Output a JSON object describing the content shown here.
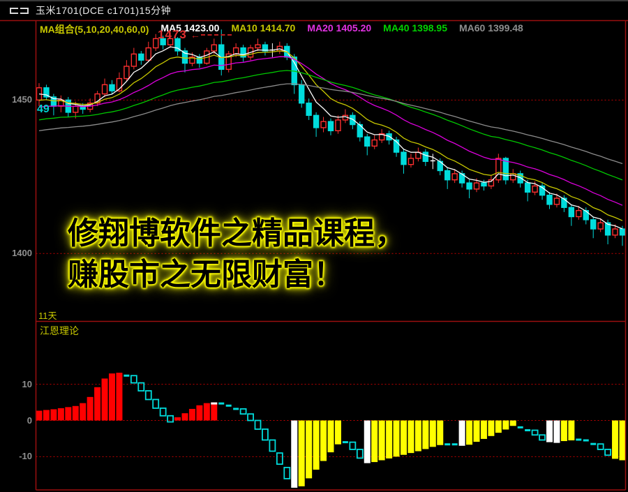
{
  "window": {
    "title": "玉米1701(DCE c1701)15分钟"
  },
  "legend": {
    "items": [
      {
        "label": "MA组合(5,10,20,40,60,0)",
        "color": "#c8c800"
      },
      {
        "label": "MA5 1423.00",
        "color": "#ffffff"
      },
      {
        "label": "MA10 1414.70",
        "color": "#c8c800"
      },
      {
        "label": "MA20 1405.20",
        "color": "#e232e2"
      },
      {
        "label": "MA40 1398.95",
        "color": "#00d200"
      },
      {
        "label": "MA60 1399.48",
        "color": "#8e8e8e"
      }
    ]
  },
  "main_chart": {
    "annotation": {
      "text": "1473",
      "candle_index": 25,
      "price": 1473
    },
    "left_tag": "49",
    "bottom_tag": "11天"
  },
  "sub_chart": {
    "label": "江恩理论"
  },
  "watermark": {
    "line1": "修翔博软件之精品课程，",
    "line2": "赚股市之无限财富！"
  },
  "colors": {
    "frame": "#9b0f0f",
    "grid": "#c40000",
    "up": "#ff3030",
    "down": "#00dcdc",
    "doji": "#ffffff",
    "bar_red": "#ff0000",
    "bar_yellow": "#ffff00",
    "bar_white": "#ffffff",
    "marker_cyan": "#00dcdc",
    "axis_text": "#909090"
  },
  "chart_data": [
    {
      "type": "candlestick",
      "title": "玉米1701(DCE c1701)15分钟",
      "ylim": [
        1378,
        1476
      ],
      "gridlines": [
        {
          "price": 1450,
          "label": "1450"
        },
        {
          "price": 1400,
          "label": "1400"
        }
      ],
      "ma_lines": [
        {
          "name": "MA5",
          "color": "#ffffff",
          "seed": 1451.0,
          "k": 0.333
        },
        {
          "name": "MA10",
          "color": "#c8c800",
          "seed": 1449.0,
          "k": 0.182
        },
        {
          "name": "MA20",
          "color": "#dc00dc",
          "seed": 1447.0,
          "k": 0.095
        },
        {
          "name": "MA40",
          "color": "#00c800",
          "seed": 1443.0,
          "k": 0.049
        },
        {
          "name": "MA60",
          "color": "#8c8c8c",
          "seed": 1439.5,
          "k": 0.033
        }
      ],
      "candles": [
        [
          1450,
          1455.5,
          1448,
          1454
        ],
        [
          1454,
          1455,
          1450,
          1451
        ],
        [
          1451,
          1452,
          1445,
          1448
        ],
        [
          1448,
          1451.5,
          1446,
          1450
        ],
        [
          1450,
          1451,
          1444.5,
          1446
        ],
        [
          1446,
          1449.5,
          1444,
          1448
        ],
        [
          1448,
          1449,
          1445.5,
          1447
        ],
        [
          1447,
          1450.5,
          1446,
          1449
        ],
        [
          1449,
          1453,
          1448,
          1452
        ],
        [
          1452,
          1457,
          1451,
          1455
        ],
        [
          1455,
          1456.5,
          1452,
          1453
        ],
        [
          1453,
          1459,
          1452.5,
          1457
        ],
        [
          1457,
          1463,
          1456,
          1461
        ],
        [
          1461,
          1467,
          1460,
          1465
        ],
        [
          1465,
          1466,
          1461.5,
          1463
        ],
        [
          1463,
          1469,
          1462.5,
          1467
        ],
        [
          1467,
          1471.5,
          1466,
          1470
        ],
        [
          1470,
          1471,
          1466.5,
          1468
        ],
        [
          1468,
          1472,
          1467,
          1470
        ],
        [
          1470,
          1470.5,
          1464.5,
          1466
        ],
        [
          1466,
          1467,
          1459,
          1462
        ],
        [
          1462,
          1465.5,
          1461,
          1464
        ],
        [
          1464,
          1465,
          1460.5,
          1462
        ],
        [
          1462,
          1467,
          1461.5,
          1466
        ],
        [
          1466,
          1470,
          1465,
          1468
        ],
        [
          1468,
          1473,
          1458,
          1460
        ],
        [
          1460,
          1466,
          1459,
          1465
        ],
        [
          1465,
          1468.5,
          1464,
          1467
        ],
        [
          1467,
          1468,
          1462.5,
          1464
        ],
        [
          1464,
          1468,
          1463,
          1467
        ],
        [
          1467,
          1470,
          1466,
          1468
        ],
        [
          1468,
          1469,
          1464.5,
          1466
        ],
        [
          1466,
          1468.5,
          1464,
          1466.3
        ],
        [
          1466,
          1469,
          1465,
          1467.5
        ],
        [
          1467.5,
          1468.5,
          1463,
          1464
        ],
        [
          1464,
          1465,
          1452,
          1455
        ],
        [
          1455,
          1456.5,
          1447.5,
          1449
        ],
        [
          1449,
          1450.5,
          1443.5,
          1445
        ],
        [
          1445,
          1446,
          1438,
          1441
        ],
        [
          1441,
          1444.5,
          1439.5,
          1443
        ],
        [
          1443,
          1444,
          1438.5,
          1440
        ],
        [
          1440,
          1445,
          1439,
          1443.5
        ],
        [
          1443.5,
          1447,
          1442.5,
          1445
        ],
        [
          1445,
          1446,
          1440.5,
          1442
        ],
        [
          1442,
          1443,
          1436.5,
          1438
        ],
        [
          1438,
          1439,
          1432,
          1435
        ],
        [
          1435,
          1438.5,
          1434,
          1437
        ],
        [
          1437,
          1440.5,
          1436,
          1439
        ],
        [
          1439,
          1440,
          1435.5,
          1437
        ],
        [
          1437,
          1438,
          1431.5,
          1433
        ],
        [
          1433,
          1434,
          1426,
          1429
        ],
        [
          1429,
          1432.5,
          1428,
          1431
        ],
        [
          1431,
          1434.5,
          1430,
          1433
        ],
        [
          1433,
          1434,
          1428.5,
          1430
        ],
        [
          1430,
          1432.5,
          1427.5,
          1430.2
        ],
        [
          1430,
          1431,
          1425.5,
          1427
        ],
        [
          1427,
          1428,
          1421,
          1424
        ],
        [
          1424,
          1427.5,
          1423,
          1426
        ],
        [
          1426,
          1427,
          1421.5,
          1423
        ],
        [
          1423,
          1424,
          1418,
          1421
        ],
        [
          1421,
          1424.5,
          1420,
          1423
        ],
        [
          1423,
          1424,
          1420.5,
          1422
        ],
        [
          1422,
          1425.5,
          1421,
          1424
        ],
        [
          1424,
          1432.5,
          1423,
          1431
        ],
        [
          1431,
          1431.5,
          1422.5,
          1424
        ],
        [
          1424,
          1427.5,
          1423,
          1426
        ],
        [
          1426,
          1427,
          1421.5,
          1423
        ],
        [
          1423,
          1424,
          1417,
          1420
        ],
        [
          1420,
          1423.5,
          1419,
          1422
        ],
        [
          1422,
          1423,
          1417.5,
          1419
        ],
        [
          1419,
          1420,
          1414.5,
          1416
        ],
        [
          1416,
          1419.5,
          1415,
          1418
        ],
        [
          1418,
          1419,
          1413.5,
          1415
        ],
        [
          1415,
          1416,
          1409,
          1412
        ],
        [
          1412,
          1415.5,
          1411,
          1414
        ],
        [
          1414,
          1415,
          1409.5,
          1411
        ],
        [
          1411,
          1412,
          1405,
          1408
        ],
        [
          1408,
          1411.5,
          1407,
          1410
        ],
        [
          1410,
          1411,
          1403,
          1406
        ],
        [
          1406,
          1409.5,
          1405,
          1408
        ],
        [
          1408,
          1409,
          1402.5,
          1406
        ]
      ]
    },
    {
      "type": "bar",
      "title": "江恩理论",
      "ylim": [
        -19.2,
        27.5
      ],
      "gridlines": [
        {
          "value": 10,
          "label": "10"
        },
        {
          "value": 0,
          "label": "0"
        },
        {
          "value": -10,
          "label": "-10"
        }
      ],
      "bar_colors": {
        "R": "#ff0000",
        "Y": "#ffff00",
        "W": "#ffffff",
        "C": "#00dcdc",
        "RW": "red-with-white-cap"
      },
      "bars": [
        [
          2.7,
          "R"
        ],
        [
          2.9,
          "R"
        ],
        [
          3.1,
          "R"
        ],
        [
          3.4,
          "R"
        ],
        [
          3.7,
          "R"
        ],
        [
          4.0,
          "R"
        ],
        [
          4.8,
          "R"
        ],
        [
          6.5,
          "R"
        ],
        [
          9.2,
          "R"
        ],
        [
          11.6,
          "R"
        ],
        [
          13.0,
          "R"
        ],
        [
          13.2,
          "R"
        ],
        [
          12.4,
          "C"
        ],
        [
          10.4,
          "C"
        ],
        [
          8.2,
          "C"
        ],
        [
          5.8,
          "C"
        ],
        [
          3.4,
          "C"
        ],
        [
          1.3,
          "C"
        ],
        [
          -0.4,
          "C"
        ],
        [
          0.9,
          "R"
        ],
        [
          2.0,
          "R"
        ],
        [
          3.2,
          "R"
        ],
        [
          4.2,
          "R"
        ],
        [
          4.8,
          "R"
        ],
        [
          5.0,
          "RW"
        ],
        [
          4.7,
          "C"
        ],
        [
          4.1,
          "C"
        ],
        [
          3.2,
          "C"
        ],
        [
          1.8,
          "C"
        ],
        [
          0.0,
          "C"
        ],
        [
          -2.4,
          "C"
        ],
        [
          -5.4,
          "C"
        ],
        [
          -9.0,
          "C"
        ],
        [
          -13.0,
          "C"
        ],
        [
          -16.6,
          "C"
        ],
        [
          -18.6,
          "W"
        ],
        [
          -18.2,
          "Y"
        ],
        [
          -16.0,
          "Y"
        ],
        [
          -13.6,
          "Y"
        ],
        [
          -11.2,
          "Y"
        ],
        [
          -8.8,
          "Y"
        ],
        [
          -6.6,
          "Y"
        ],
        [
          -6.0,
          "C"
        ],
        [
          -8.0,
          "C"
        ],
        [
          -10.4,
          "C"
        ],
        [
          -11.8,
          "W"
        ],
        [
          -11.5,
          "Y"
        ],
        [
          -11.0,
          "Y"
        ],
        [
          -10.5,
          "Y"
        ],
        [
          -10.0,
          "Y"
        ],
        [
          -9.5,
          "Y"
        ],
        [
          -9.0,
          "Y"
        ],
        [
          -8.5,
          "Y"
        ],
        [
          -7.9,
          "Y"
        ],
        [
          -7.3,
          "Y"
        ],
        [
          -6.8,
          "Y"
        ],
        [
          -6.6,
          "C"
        ],
        [
          -6.6,
          "C"
        ],
        [
          -7.0,
          "W"
        ],
        [
          -6.7,
          "Y"
        ],
        [
          -5.9,
          "Y"
        ],
        [
          -5.1,
          "Y"
        ],
        [
          -4.3,
          "Y"
        ],
        [
          -3.4,
          "Y"
        ],
        [
          -2.5,
          "Y"
        ],
        [
          -1.5,
          "Y"
        ],
        [
          -1.9,
          "C"
        ],
        [
          -2.7,
          "C"
        ],
        [
          -4.0,
          "C"
        ],
        [
          -5.4,
          "C"
        ],
        [
          -6.0,
          "W"
        ],
        [
          -6.2,
          "W"
        ],
        [
          -5.7,
          "Y"
        ],
        [
          -5.5,
          "Y"
        ],
        [
          -5.3,
          "C"
        ],
        [
          -5.5,
          "C"
        ],
        [
          -6.5,
          "C"
        ],
        [
          -8.0,
          "C"
        ],
        [
          -9.6,
          "C"
        ],
        [
          -10.6,
          "Y"
        ],
        [
          -11.0,
          "Y"
        ]
      ]
    }
  ]
}
